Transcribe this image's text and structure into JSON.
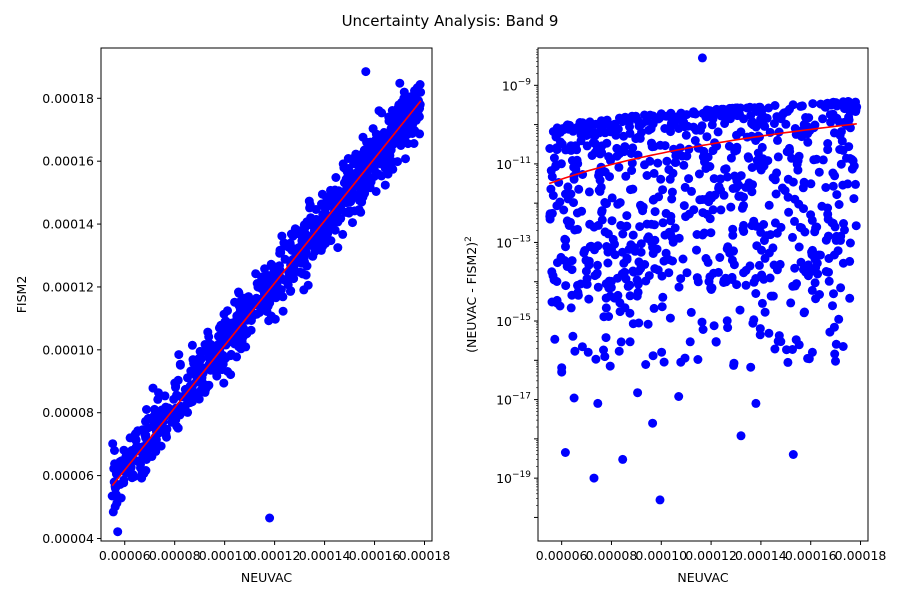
{
  "figure": {
    "suptitle": "Uncertainty Analysis: Band 9"
  },
  "colors": {
    "points": "#0000ff",
    "fit": "#ff0000",
    "axes": "#000000"
  },
  "chart_data": [
    {
      "type": "scatter",
      "title": "",
      "xlabel": "NEUVAC",
      "ylabel": "FISM2",
      "xlim": [
        5.05e-05,
        0.000183
      ],
      "ylim": [
        3.92e-05,
        0.000196
      ],
      "xticks": [
        "0.00006",
        "0.00008",
        "0.00010",
        "0.00012",
        "0.00014",
        "0.00016",
        "0.00018"
      ],
      "xtick_values": [
        6e-05,
        8e-05,
        0.0001,
        0.00012,
        0.00014,
        0.00016,
        0.00018
      ],
      "yticks": [
        "0.00004",
        "0.00006",
        "0.00008",
        "0.00010",
        "0.00012",
        "0.00014",
        "0.00016",
        "0.00018"
      ],
      "ytick_values": [
        4e-05,
        6e-05,
        8e-05,
        0.0001,
        0.00012,
        0.00014,
        0.00016,
        0.00018
      ],
      "scale": "linear",
      "grid": false,
      "series": [
        {
          "kind": "scatter",
          "color": "#0000ff",
          "point_count": 900,
          "band": {
            "x_range": [
              5.5e-05,
              0.0001785
            ],
            "center_slope": 0.9912,
            "center_intercept": 2.3e-06,
            "half_width": 1.15e-05
          },
          "points": [
            [
              0.000118,
              4.65e-05
            ],
            [
              0.0001565,
              0.0001885
            ],
            [
              5.5e-05,
              5.35e-05
            ]
          ]
        },
        {
          "kind": "line",
          "color": "#ff0000",
          "x": [
            5.5e-05,
            0.0001785
          ],
          "y": [
            5.68e-05,
            0.0001792
          ]
        }
      ]
    },
    {
      "type": "scatter",
      "title": "",
      "xlabel": "NEUVAC",
      "ylabel": "(NEUVAC - FISM2)",
      "ylabel_superscript": "2",
      "xlim": [
        5.05e-05,
        0.000183
      ],
      "scale": "log",
      "ylim_log10": [
        -20.6,
        -8.05
      ],
      "xticks": [
        "0.00006",
        "0.00008",
        "0.00010",
        "0.00012",
        "0.00014",
        "0.00016",
        "0.00018"
      ],
      "xtick_values": [
        6e-05,
        8e-05,
        0.0001,
        0.00012,
        0.00014,
        0.00016,
        0.00018
      ],
      "yticks": [
        {
          "base": "10",
          "exp": "−9",
          "log10": -9
        },
        {
          "base": "10",
          "exp": "−11",
          "log10": -11
        },
        {
          "base": "10",
          "exp": "−13",
          "log10": -13
        },
        {
          "base": "10",
          "exp": "−15",
          "log10": -15
        },
        {
          "base": "10",
          "exp": "−17",
          "log10": -17
        },
        {
          "base": "10",
          "exp": "−19",
          "log10": -19
        }
      ],
      "grid": false,
      "series": [
        {
          "kind": "scatter",
          "color": "#0000ff",
          "point_count": 700,
          "dense_log10_range": [
            -14.5,
            -9.4
          ],
          "outliers": [
            [
              0.0001165,
              5e-09
            ],
            [
              6.15e-05,
              4.5e-19
            ],
            [
              7.3e-05,
              1e-19
            ],
            [
              9.95e-05,
              2.8e-20
            ],
            [
              8.45e-05,
              3e-19
            ],
            [
              0.000132,
              1.2e-18
            ],
            [
              0.000153,
              4e-19
            ],
            [
              9.65e-05,
              2.5e-18
            ],
            [
              0.000138,
              8e-18
            ],
            [
              7.45e-05,
              8e-18
            ],
            [
              6.5e-05,
              1.1e-17
            ],
            [
              0.000107,
              1.2e-17
            ],
            [
              9.05e-05,
              1.5e-17
            ],
            [
              6e-05,
              5e-17
            ],
            [
              0.000148,
              3e-16
            ],
            [
              0.000122,
              3e-16
            ],
            [
              0.000161,
              2e-14
            ],
            [
              0.000172,
              7e-15
            ],
            [
              0.000177,
              1.2e-11
            ],
            [
              0.000178,
              3e-12
            ]
          ]
        },
        {
          "kind": "line",
          "color": "#ff0000",
          "x_range": [
            5.5e-05,
            0.0001785
          ],
          "curve": "log10(y) = -11.5 + 1.52 * ln(x / 0.000055) / ln(0.0001785 / 0.000055)",
          "endpoints": [
            [
              5.5e-05,
              3.2e-12
            ],
            [
              0.0001785,
              1.05e-10
            ]
          ]
        }
      ]
    }
  ]
}
